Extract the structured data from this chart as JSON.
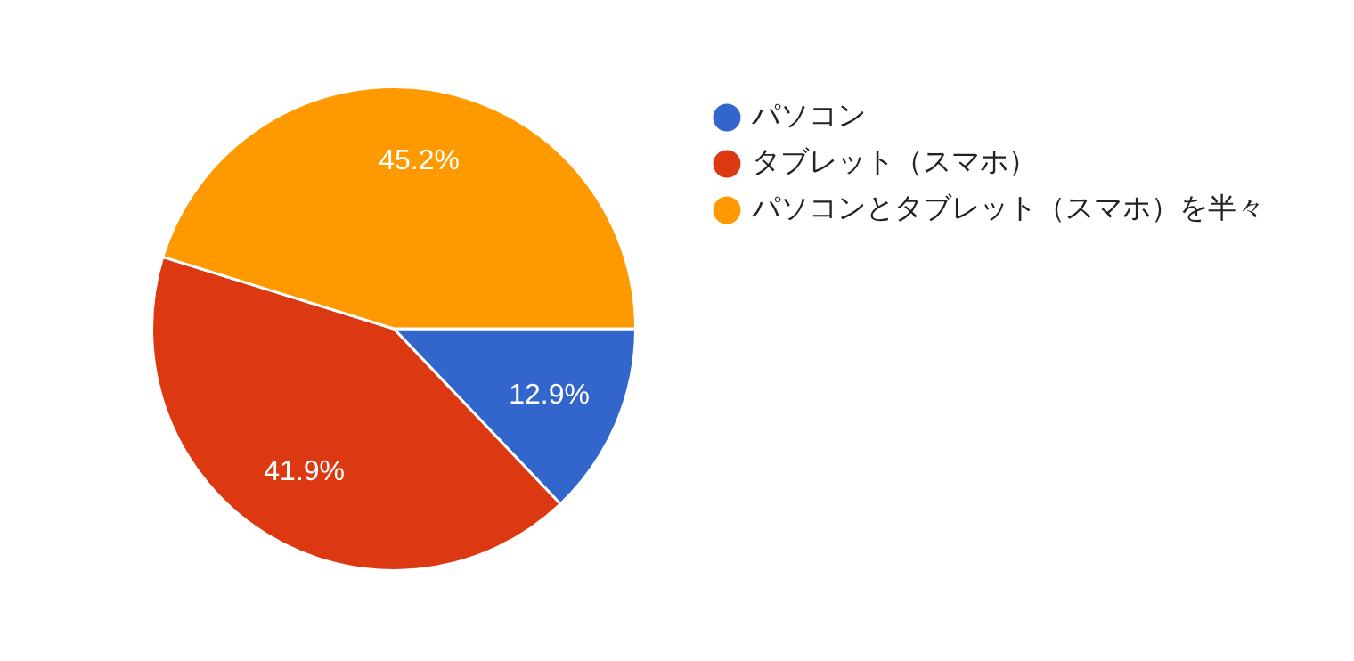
{
  "chart_data": {
    "type": "pie",
    "categories": [
      "パソコン",
      "タブレット（スマホ）",
      "パソコンとタブレット（スマホ）を半々"
    ],
    "values": [
      12.9,
      41.9,
      45.2
    ],
    "value_labels": [
      "12.9%",
      "41.9%",
      "45.2%"
    ],
    "colors": [
      "#3366cc",
      "#dc3912",
      "#ff9900"
    ],
    "legend": "right"
  }
}
